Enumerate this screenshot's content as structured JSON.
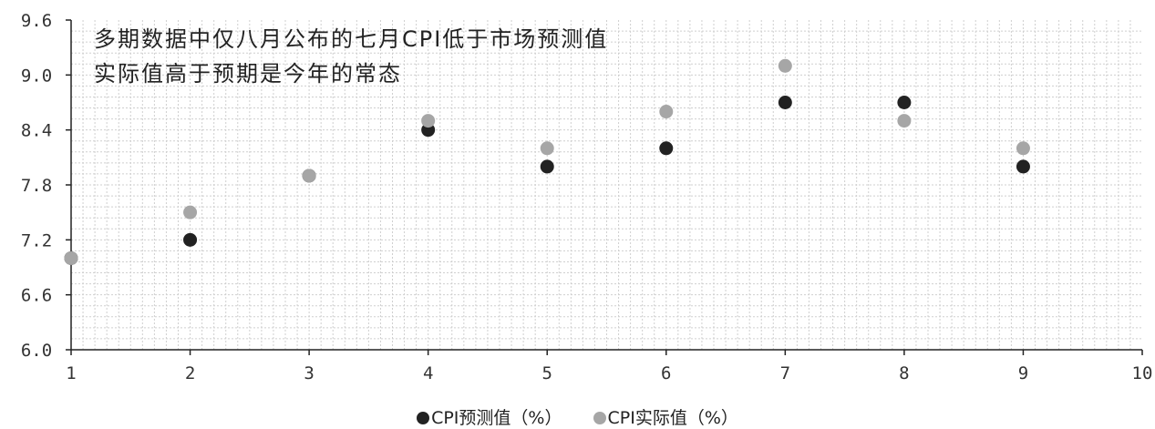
{
  "chart_data": {
    "type": "scatter",
    "annotation": [
      "多期数据中仅八月公布的七月CPI低于市场预测值",
      "实际值高于预期是今年的常态"
    ],
    "xlim": [
      1,
      10
    ],
    "ylim": [
      6.0,
      9.6
    ],
    "x_ticks": [
      "1",
      "2",
      "3",
      "4",
      "5",
      "6",
      "7",
      "8",
      "9",
      "10"
    ],
    "y_ticks": [
      "6.0",
      "6.6",
      "7.2",
      "7.8",
      "8.4",
      "9.0",
      "9.6"
    ],
    "grid": true,
    "legend_position": "bottom",
    "series": [
      {
        "name": "CPI预测值（%）",
        "color": "#222222",
        "x": [
          1,
          2,
          3,
          4,
          5,
          6,
          7,
          8,
          9
        ],
        "y": [
          7.0,
          7.2,
          7.9,
          8.4,
          8.0,
          8.2,
          8.7,
          8.7,
          8.0
        ]
      },
      {
        "name": "CPI实际值（%）",
        "color": "#a6a6a6",
        "x": [
          1,
          2,
          3,
          4,
          5,
          6,
          7,
          8,
          9
        ],
        "y": [
          7.0,
          7.5,
          7.9,
          8.5,
          8.2,
          8.6,
          9.1,
          8.5,
          8.2
        ]
      }
    ]
  }
}
